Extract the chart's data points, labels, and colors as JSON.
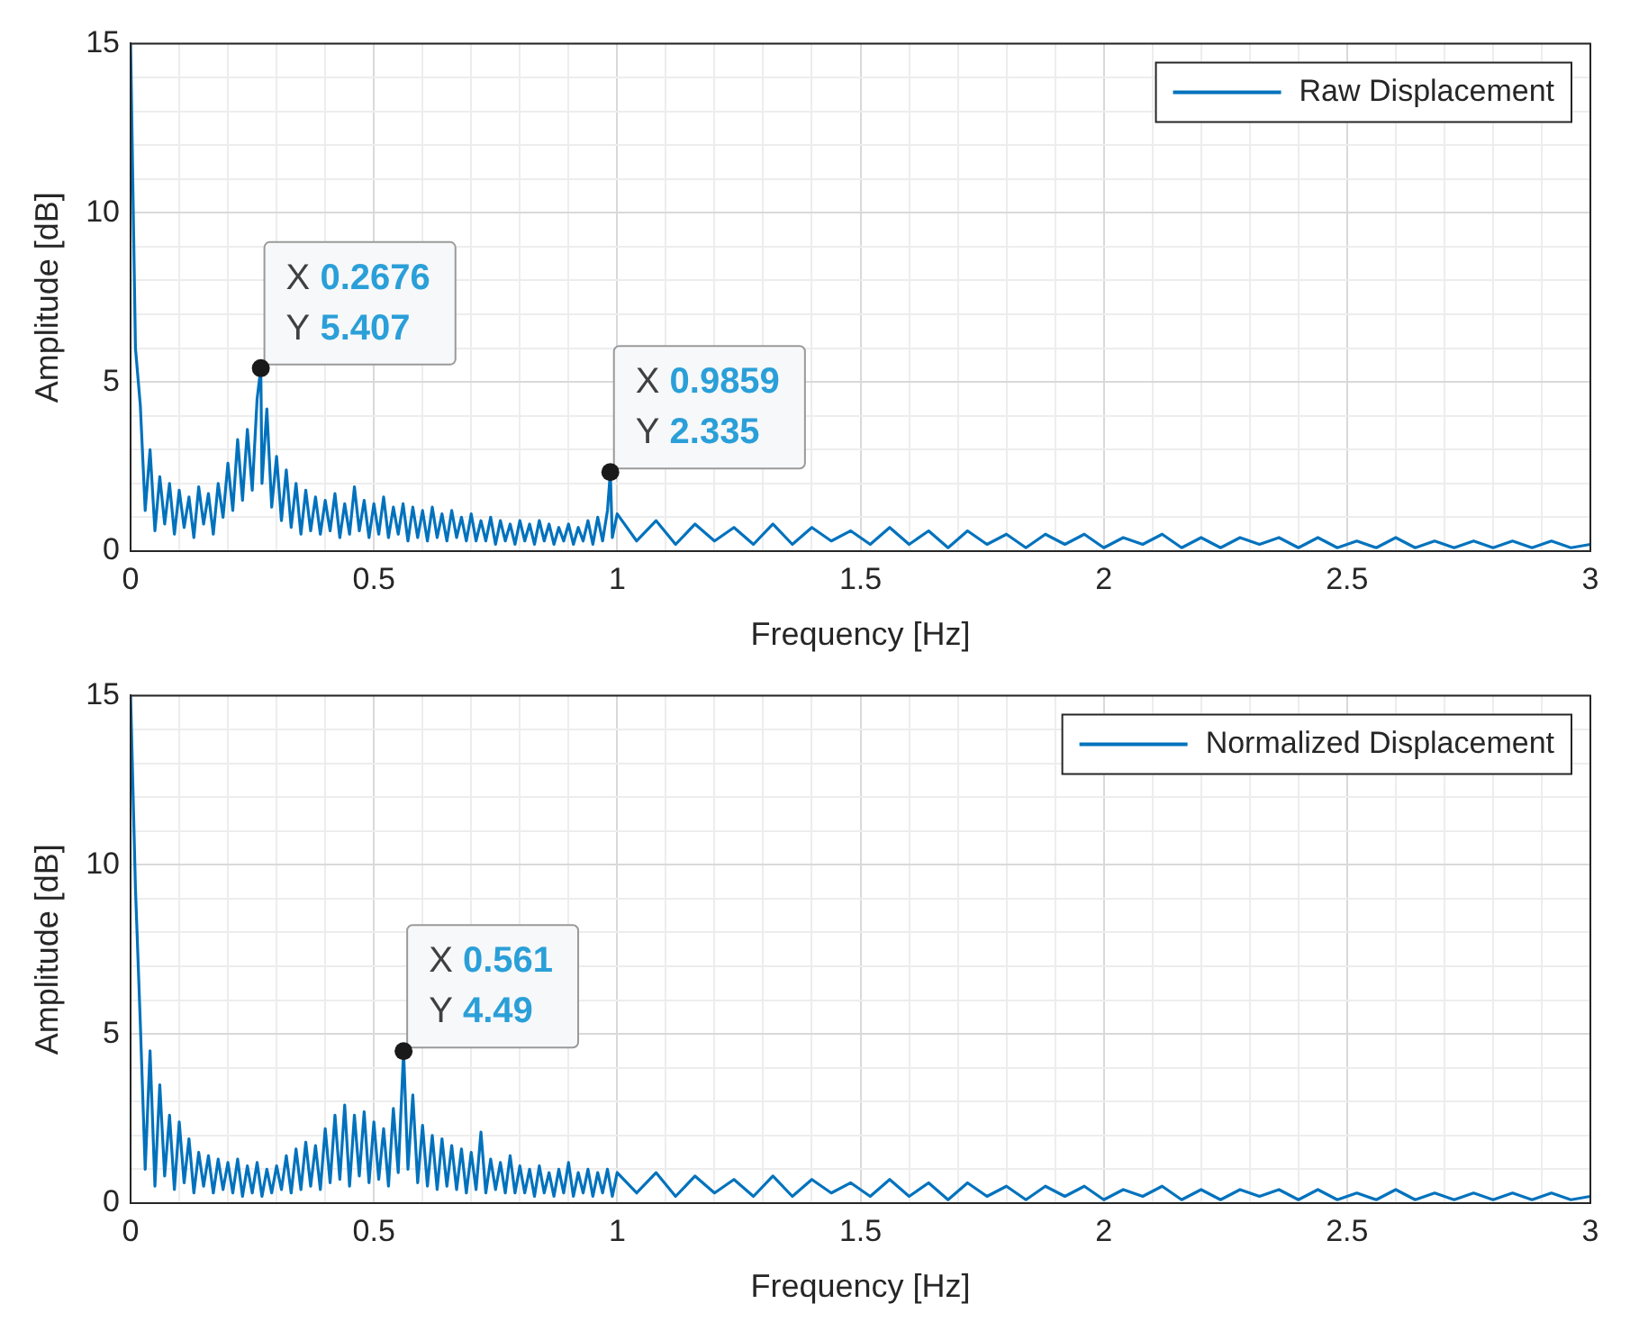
{
  "chart_data": [
    {
      "type": "line",
      "xlabel": "Frequency [Hz]",
      "ylabel": "Amplitude [dB]",
      "xlim": [
        0,
        3
      ],
      "ylim": [
        0,
        15
      ],
      "xticks": [
        0,
        {
          "value": 0.1,
          "label": null
        },
        {
          "value": 0.2,
          "label": null
        },
        {
          "value": 0.3,
          "label": null
        },
        {
          "value": 0.4,
          "label": null
        },
        0.5,
        {
          "value": 0.6,
          "label": null
        },
        {
          "value": 0.7,
          "label": null
        },
        {
          "value": 0.8,
          "label": null
        },
        {
          "value": 0.9,
          "label": null
        },
        1,
        {
          "value": 1.1,
          "label": null
        },
        {
          "value": 1.2,
          "label": null
        },
        {
          "value": 1.3,
          "label": null
        },
        {
          "value": 1.4,
          "label": null
        },
        1.5,
        {
          "value": 1.6,
          "label": null
        },
        {
          "value": 1.7,
          "label": null
        },
        {
          "value": 1.8,
          "label": null
        },
        {
          "value": 1.9,
          "label": null
        },
        2,
        {
          "value": 2.1,
          "label": null
        },
        {
          "value": 2.2,
          "label": null
        },
        {
          "value": 2.3,
          "label": null
        },
        {
          "value": 2.4,
          "label": null
        },
        2.5,
        {
          "value": 2.6,
          "label": null
        },
        {
          "value": 2.7,
          "label": null
        },
        {
          "value": 2.8,
          "label": null
        },
        {
          "value": 2.9,
          "label": null
        },
        3
      ],
      "yticks": [
        0,
        {
          "value": 1,
          "label": null
        },
        {
          "value": 2,
          "label": null
        },
        {
          "value": 3,
          "label": null
        },
        {
          "value": 4,
          "label": null
        },
        5,
        {
          "value": 6,
          "label": null
        },
        {
          "value": 7,
          "label": null
        },
        {
          "value": 8,
          "label": null
        },
        {
          "value": 9,
          "label": null
        },
        10,
        {
          "value": 11,
          "label": null
        },
        {
          "value": 12,
          "label": null
        },
        {
          "value": 13,
          "label": null
        },
        {
          "value": 14,
          "label": null
        },
        15
      ],
      "grid": true,
      "legend": "top right",
      "marker": "none",
      "annotations": [
        {
          "text": "X 0.2676\nY 5.407",
          "x": 0.2676,
          "y": 5.407
        },
        {
          "text": "X 0.9859\nY 2.335",
          "x": 0.9859,
          "y": 2.335
        }
      ],
      "series": [
        {
          "name": "Raw Displacement",
          "color": "#0072bd",
          "x": [
            0,
            0.01,
            0.02,
            0.03,
            0.04,
            0.05,
            0.06,
            0.07,
            0.08,
            0.09,
            0.1,
            0.11,
            0.12,
            0.13,
            0.14,
            0.15,
            0.16,
            0.17,
            0.18,
            0.19,
            0.2,
            0.21,
            0.22,
            0.23,
            0.24,
            0.25,
            0.26,
            0.2676,
            0.27,
            0.28,
            0.29,
            0.3,
            0.31,
            0.32,
            0.33,
            0.34,
            0.35,
            0.36,
            0.37,
            0.38,
            0.39,
            0.4,
            0.41,
            0.42,
            0.43,
            0.44,
            0.45,
            0.46,
            0.47,
            0.48,
            0.49,
            0.5,
            0.51,
            0.52,
            0.53,
            0.54,
            0.55,
            0.56,
            0.57,
            0.58,
            0.59,
            0.6,
            0.61,
            0.62,
            0.63,
            0.64,
            0.65,
            0.66,
            0.67,
            0.68,
            0.69,
            0.7,
            0.71,
            0.72,
            0.73,
            0.74,
            0.75,
            0.76,
            0.77,
            0.78,
            0.79,
            0.8,
            0.81,
            0.82,
            0.83,
            0.84,
            0.85,
            0.86,
            0.87,
            0.88,
            0.89,
            0.9,
            0.91,
            0.92,
            0.93,
            0.94,
            0.95,
            0.96,
            0.97,
            0.98,
            0.9859,
            0.99,
            1,
            1.04,
            1.08,
            1.12,
            1.16,
            1.2,
            1.24,
            1.28,
            1.32,
            1.36,
            1.4,
            1.44,
            1.48,
            1.52,
            1.56,
            1.6,
            1.64,
            1.68,
            1.72,
            1.76,
            1.8,
            1.84,
            1.88,
            1.92,
            1.96,
            2,
            2.04,
            2.08,
            2.12,
            2.16,
            2.2,
            2.24,
            2.28,
            2.32,
            2.36,
            2.4,
            2.44,
            2.48,
            2.52,
            2.56,
            2.6,
            2.64,
            2.68,
            2.72,
            2.76,
            2.8,
            2.84,
            2.88,
            2.92,
            2.96,
            3
          ],
          "values": [
            15,
            6,
            4.3,
            1.2,
            3,
            0.6,
            2.2,
            0.8,
            2,
            0.5,
            1.8,
            0.7,
            1.6,
            0.4,
            1.9,
            0.8,
            1.7,
            0.5,
            2,
            1,
            2.6,
            1.2,
            3.3,
            1.5,
            3.6,
            1.8,
            4.5,
            5.407,
            2,
            4.2,
            1.3,
            2.8,
            0.9,
            2.4,
            0.7,
            2,
            0.5,
            1.8,
            0.6,
            1.6,
            0.5,
            1.5,
            0.6,
            1.7,
            0.4,
            1.4,
            0.5,
            1.9,
            0.6,
            1.5,
            0.4,
            1.4,
            0.5,
            1.6,
            0.4,
            1.3,
            0.5,
            1.4,
            0.3,
            1.3,
            0.4,
            1.2,
            0.3,
            1.3,
            0.4,
            1.1,
            0.3,
            1.2,
            0.4,
            1,
            0.3,
            1.1,
            0.3,
            0.9,
            0.3,
            1,
            0.2,
            0.9,
            0.3,
            0.8,
            0.2,
            0.9,
            0.3,
            0.8,
            0.2,
            0.9,
            0.3,
            0.8,
            0.2,
            0.7,
            0.3,
            0.8,
            0.2,
            0.7,
            0.3,
            0.9,
            0.2,
            1,
            0.3,
            1.2,
            2.335,
            0.4,
            1.1,
            0.3,
            0.9,
            0.2,
            0.8,
            0.3,
            0.7,
            0.2,
            0.8,
            0.2,
            0.7,
            0.3,
            0.6,
            0.2,
            0.7,
            0.2,
            0.6,
            0.1,
            0.6,
            0.2,
            0.5,
            0.1,
            0.5,
            0.2,
            0.5,
            0.1,
            0.4,
            0.2,
            0.5,
            0.1,
            0.4,
            0.1,
            0.4,
            0.2,
            0.4,
            0.1,
            0.4,
            0.1,
            0.3,
            0.1,
            0.4,
            0.1,
            0.3,
            0.1,
            0.3,
            0.1,
            0.3,
            0.1,
            0.3,
            0.1,
            0.2
          ]
        }
      ]
    },
    {
      "type": "line",
      "xlabel": "Frequency [Hz]",
      "ylabel": "Amplitude [dB]",
      "xlim": [
        0,
        3
      ],
      "ylim": [
        0,
        15
      ],
      "xticks": [
        0,
        {
          "value": 0.1,
          "label": null
        },
        {
          "value": 0.2,
          "label": null
        },
        {
          "value": 0.3,
          "label": null
        },
        {
          "value": 0.4,
          "label": null
        },
        0.5,
        {
          "value": 0.6,
          "label": null
        },
        {
          "value": 0.7,
          "label": null
        },
        {
          "value": 0.8,
          "label": null
        },
        {
          "value": 0.9,
          "label": null
        },
        1,
        {
          "value": 1.1,
          "label": null
        },
        {
          "value": 1.2,
          "label": null
        },
        {
          "value": 1.3,
          "label": null
        },
        {
          "value": 1.4,
          "label": null
        },
        1.5,
        {
          "value": 1.6,
          "label": null
        },
        {
          "value": 1.7,
          "label": null
        },
        {
          "value": 1.8,
          "label": null
        },
        {
          "value": 1.9,
          "label": null
        },
        2,
        {
          "value": 2.1,
          "label": null
        },
        {
          "value": 2.2,
          "label": null
        },
        {
          "value": 2.3,
          "label": null
        },
        {
          "value": 2.4,
          "label": null
        },
        2.5,
        {
          "value": 2.6,
          "label": null
        },
        {
          "value": 2.7,
          "label": null
        },
        {
          "value": 2.8,
          "label": null
        },
        {
          "value": 2.9,
          "label": null
        },
        3
      ],
      "yticks": [
        0,
        {
          "value": 1,
          "label": null
        },
        {
          "value": 2,
          "label": null
        },
        {
          "value": 3,
          "label": null
        },
        {
          "value": 4,
          "label": null
        },
        5,
        {
          "value": 6,
          "label": null
        },
        {
          "value": 7,
          "label": null
        },
        {
          "value": 8,
          "label": null
        },
        {
          "value": 9,
          "label": null
        },
        10,
        {
          "value": 11,
          "label": null
        },
        {
          "value": 12,
          "label": null
        },
        {
          "value": 13,
          "label": null
        },
        {
          "value": 14,
          "label": null
        },
        15
      ],
      "grid": true,
      "legend": "top right",
      "marker": "none",
      "annotations": [
        {
          "text": "X 0.561\nY 4.49",
          "x": 0.561,
          "y": 4.49
        }
      ],
      "series": [
        {
          "name": "Normalized Displacement",
          "color": "#0072bd",
          "x": [
            0,
            0.01,
            0.02,
            0.03,
            0.04,
            0.05,
            0.06,
            0.07,
            0.08,
            0.09,
            0.1,
            0.11,
            0.12,
            0.13,
            0.14,
            0.15,
            0.16,
            0.17,
            0.18,
            0.19,
            0.2,
            0.21,
            0.22,
            0.23,
            0.24,
            0.25,
            0.26,
            0.27,
            0.28,
            0.29,
            0.3,
            0.31,
            0.32,
            0.33,
            0.34,
            0.35,
            0.36,
            0.37,
            0.38,
            0.39,
            0.4,
            0.41,
            0.42,
            0.43,
            0.44,
            0.45,
            0.46,
            0.47,
            0.48,
            0.49,
            0.5,
            0.51,
            0.52,
            0.53,
            0.54,
            0.55,
            0.561,
            0.57,
            0.58,
            0.59,
            0.6,
            0.61,
            0.62,
            0.63,
            0.64,
            0.65,
            0.66,
            0.67,
            0.68,
            0.69,
            0.7,
            0.71,
            0.72,
            0.73,
            0.74,
            0.75,
            0.76,
            0.77,
            0.78,
            0.79,
            0.8,
            0.81,
            0.82,
            0.83,
            0.84,
            0.85,
            0.86,
            0.87,
            0.88,
            0.89,
            0.9,
            0.91,
            0.92,
            0.93,
            0.94,
            0.95,
            0.96,
            0.97,
            0.98,
            0.99,
            1,
            1.04,
            1.08,
            1.12,
            1.16,
            1.2,
            1.24,
            1.28,
            1.32,
            1.36,
            1.4,
            1.44,
            1.48,
            1.52,
            1.56,
            1.6,
            1.64,
            1.68,
            1.72,
            1.76,
            1.8,
            1.84,
            1.88,
            1.92,
            1.96,
            2,
            2.04,
            2.08,
            2.12,
            2.16,
            2.2,
            2.24,
            2.28,
            2.32,
            2.36,
            2.4,
            2.44,
            2.48,
            2.52,
            2.56,
            2.6,
            2.64,
            2.68,
            2.72,
            2.76,
            2.8,
            2.84,
            2.88,
            2.92,
            2.96,
            3
          ],
          "values": [
            15,
            9.3,
            5.3,
            1,
            4.5,
            0.5,
            3.5,
            0.8,
            2.6,
            0.4,
            2.4,
            0.6,
            1.9,
            0.3,
            1.5,
            0.5,
            1.4,
            0.3,
            1.3,
            0.4,
            1.2,
            0.3,
            1.3,
            0.2,
            1.1,
            0.3,
            1.2,
            0.2,
            1,
            0.3,
            1.1,
            0.4,
            1.4,
            0.3,
            1.6,
            0.4,
            1.8,
            0.5,
            1.7,
            0.4,
            2.2,
            0.6,
            2.6,
            0.7,
            2.9,
            0.5,
            2.6,
            0.8,
            2.7,
            0.6,
            2.4,
            0.7,
            2.2,
            0.5,
            2.8,
            0.9,
            4.49,
            1,
            3.2,
            0.6,
            2.3,
            0.5,
            2,
            0.4,
            1.9,
            0.5,
            1.7,
            0.4,
            1.6,
            0.3,
            1.5,
            0.4,
            2.1,
            0.3,
            1.3,
            0.4,
            1.2,
            0.3,
            1.4,
            0.3,
            1.1,
            0.3,
            1,
            0.2,
            1.1,
            0.3,
            0.9,
            0.2,
            1,
            0.3,
            1.2,
            0.2,
            0.9,
            0.3,
            1,
            0.2,
            0.9,
            0.3,
            1,
            0.2,
            0.9,
            0.3,
            0.9,
            0.2,
            0.8,
            0.3,
            0.7,
            0.2,
            0.8,
            0.2,
            0.7,
            0.3,
            0.6,
            0.2,
            0.7,
            0.2,
            0.6,
            0.1,
            0.6,
            0.2,
            0.5,
            0.1,
            0.5,
            0.2,
            0.5,
            0.1,
            0.4,
            0.2,
            0.5,
            0.1,
            0.4,
            0.1,
            0.4,
            0.2,
            0.4,
            0.1,
            0.4,
            0.1,
            0.3,
            0.1,
            0.4,
            0.1,
            0.3,
            0.1,
            0.3,
            0.1,
            0.3,
            0.1,
            0.3,
            0.1,
            0.2
          ]
        }
      ]
    }
  ]
}
